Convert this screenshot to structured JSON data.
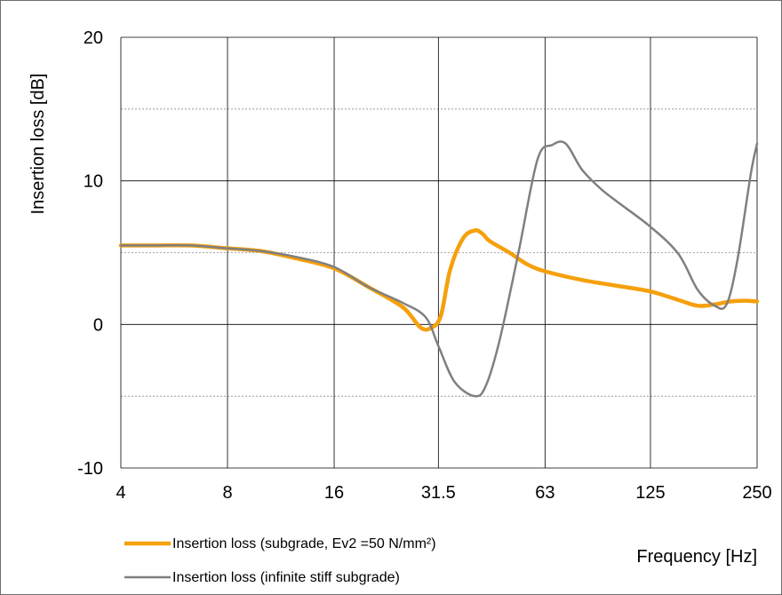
{
  "chart_data": {
    "type": "line",
    "title": "",
    "xlabel": "Frequency [Hz]",
    "ylabel": "Insertion loss [dB]",
    "x_scale": "log2",
    "x_ticks": [
      4,
      8,
      16,
      31.5,
      63,
      125,
      250
    ],
    "x_tick_labels": [
      "4",
      "8",
      "16",
      "31.5",
      "63",
      "125",
      "250"
    ],
    "xlim": [
      4,
      250
    ],
    "ylim": [
      -10,
      20
    ],
    "y_ticks": [
      -10,
      0,
      10,
      20
    ],
    "y_tick_labels": [
      "-10",
      "0",
      "10",
      "20"
    ],
    "y_minor_ticks": [
      -5,
      5,
      15
    ],
    "grid": {
      "major": "solid",
      "minor": "dotted"
    },
    "legend_position": "bottom-left",
    "series": [
      {
        "name": "Insertion loss (subgrade,  Ev2 =50 N/mm²)",
        "color": "#F5A00C",
        "points": [
          [
            4,
            5.5
          ],
          [
            5,
            5.5
          ],
          [
            6.3,
            5.5
          ],
          [
            8,
            5.3
          ],
          [
            10,
            5.1
          ],
          [
            12.5,
            4.6
          ],
          [
            16,
            3.9
          ],
          [
            20,
            2.6
          ],
          [
            25,
            1.2
          ],
          [
            28,
            -0.2
          ],
          [
            30,
            -0.25
          ],
          [
            32,
            0.6
          ],
          [
            34,
            3.8
          ],
          [
            37,
            6.0
          ],
          [
            40,
            6.55
          ],
          [
            42,
            6.3
          ],
          [
            44,
            5.8
          ],
          [
            50,
            5.0
          ],
          [
            56,
            4.2
          ],
          [
            63,
            3.7
          ],
          [
            80,
            3.1
          ],
          [
            100,
            2.7
          ],
          [
            125,
            2.3
          ],
          [
            150,
            1.7
          ],
          [
            170,
            1.3
          ],
          [
            190,
            1.4
          ],
          [
            210,
            1.6
          ],
          [
            230,
            1.65
          ],
          [
            250,
            1.6
          ]
        ]
      },
      {
        "name": "Insertion loss (infinite stiff subgrade)",
        "color": "#808080",
        "points": [
          [
            4,
            5.5
          ],
          [
            5,
            5.5
          ],
          [
            6.3,
            5.5
          ],
          [
            8,
            5.3
          ],
          [
            10,
            5.1
          ],
          [
            12.5,
            4.7
          ],
          [
            16,
            4.0
          ],
          [
            20,
            2.6
          ],
          [
            25,
            1.5
          ],
          [
            29,
            0.5
          ],
          [
            31.5,
            -1.5
          ],
          [
            35,
            -4.0
          ],
          [
            40,
            -5.0
          ],
          [
            43,
            -4.2
          ],
          [
            47,
            -1.0
          ],
          [
            53,
            5.0
          ],
          [
            60,
            11.5
          ],
          [
            66,
            12.5
          ],
          [
            72,
            12.6
          ],
          [
            80,
            10.8
          ],
          [
            90,
            9.5
          ],
          [
            100,
            8.6
          ],
          [
            125,
            6.8
          ],
          [
            150,
            4.9
          ],
          [
            170,
            2.4
          ],
          [
            190,
            1.3
          ],
          [
            205,
            1.4
          ],
          [
            220,
            4.5
          ],
          [
            240,
            10.5
          ],
          [
            250,
            12.6
          ]
        ]
      }
    ]
  }
}
